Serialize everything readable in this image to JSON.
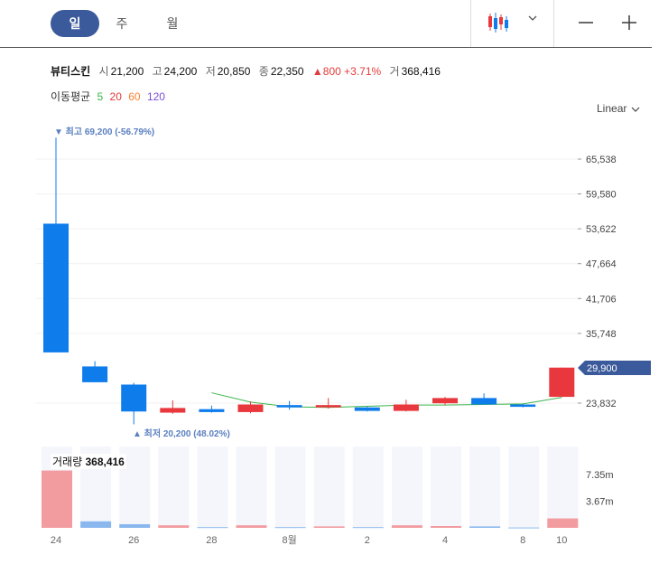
{
  "tabs": [
    {
      "label": "일",
      "active": true
    },
    {
      "label": "주",
      "active": false
    },
    {
      "label": "월",
      "active": false
    }
  ],
  "toolbar": {
    "chart_type_icon": "candlestick-icon",
    "dropdown_icon": "chevron-down-icon",
    "zoom_out_icon": "minus-icon",
    "zoom_in_icon": "plus-icon"
  },
  "stock": {
    "name": "뷰티스킨",
    "open_label": "시",
    "open": "21,200",
    "high_label": "고",
    "high": "24,200",
    "low_label": "저",
    "low": "20,850",
    "close_label": "종",
    "close": "22,350",
    "change": "▲800",
    "change_pct": "+3.71%",
    "volume_label": "거",
    "volume": "368,416"
  },
  "moving_average": {
    "label": "이동평균",
    "periods": [
      {
        "value": "5",
        "color": "#3cb44b"
      },
      {
        "value": "20",
        "color": "#e23b3b"
      },
      {
        "value": "60",
        "color": "#f58231"
      },
      {
        "value": "120",
        "color": "#7b4fd6"
      }
    ]
  },
  "scale_selector": "Linear",
  "colors": {
    "up": "#e8383d",
    "down": "#0f7cec",
    "ma5": "#3cb44b",
    "current_price_tag": "#3b5a9b",
    "annotation": "#5a7fc0"
  },
  "chart_data": {
    "type": "candlestick",
    "y_ticks": [
      "65,538",
      "59,580",
      "53,622",
      "47,664",
      "41,706",
      "35,748",
      "23,832"
    ],
    "current_price": "29,900",
    "max_annotation": "최고 69,200 (-56.79%)",
    "min_annotation": "최저 20,200 (48.02%)",
    "x_ticks": [
      "24",
      "26",
      "28",
      "8월",
      "2",
      "4",
      "8",
      "10"
    ],
    "candles": [
      {
        "open": 54500,
        "close": 32500,
        "high": 69200,
        "low": 32500
      },
      {
        "open": 30100,
        "close": 27400,
        "high": 31000,
        "low": 27400
      },
      {
        "open": 27000,
        "close": 22400,
        "high": 27300,
        "low": 20200
      },
      {
        "open": 22200,
        "close": 23000,
        "high": 24300,
        "low": 22000
      },
      {
        "open": 22800,
        "close": 22300,
        "high": 23400,
        "low": 22200
      },
      {
        "open": 22300,
        "close": 23600,
        "high": 24100,
        "low": 22100
      },
      {
        "open": 23500,
        "close": 23100,
        "high": 24200,
        "low": 22700
      },
      {
        "open": 23100,
        "close": 23500,
        "high": 24700,
        "low": 22900
      },
      {
        "open": 23100,
        "close": 22500,
        "high": 23200,
        "low": 22400
      },
      {
        "open": 22500,
        "close": 23600,
        "high": 24400,
        "low": 22400
      },
      {
        "open": 23800,
        "close": 24700,
        "high": 24900,
        "low": 23500
      },
      {
        "open": 24700,
        "close": 23600,
        "high": 25500,
        "low": 23600
      },
      {
        "open": 23600,
        "close": 23200,
        "high": 23700,
        "low": 23100
      },
      {
        "open": 24900,
        "close": 29900,
        "high": 29900,
        "low": 24900
      }
    ],
    "ma5": [
      null,
      null,
      null,
      null,
      25600,
      24000,
      23200,
      23100,
      23300,
      23500,
      23500,
      23600,
      23700,
      24800
    ],
    "volume": {
      "label": "거래량",
      "value": "368,416",
      "y_ticks": [
        "7.35m",
        "3.67m"
      ],
      "bars": [
        {
          "value": 7.9,
          "dir": "up"
        },
        {
          "value": 0.9,
          "dir": "down"
        },
        {
          "value": 0.5,
          "dir": "down"
        },
        {
          "value": 0.35,
          "dir": "up"
        },
        {
          "value": 0.1,
          "dir": "down"
        },
        {
          "value": 0.35,
          "dir": "up"
        },
        {
          "value": 0.1,
          "dir": "down"
        },
        {
          "value": 0.2,
          "dir": "up"
        },
        {
          "value": 0.1,
          "dir": "down"
        },
        {
          "value": 0.35,
          "dir": "up"
        },
        {
          "value": 0.25,
          "dir": "up"
        },
        {
          "value": 0.2,
          "dir": "down"
        },
        {
          "value": 0.05,
          "dir": "down"
        },
        {
          "value": 1.3,
          "dir": "up"
        }
      ]
    }
  }
}
